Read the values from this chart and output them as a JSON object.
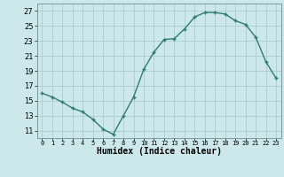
{
  "x": [
    0,
    1,
    2,
    3,
    4,
    5,
    6,
    7,
    8,
    9,
    10,
    11,
    12,
    13,
    14,
    15,
    16,
    17,
    18,
    19,
    20,
    21,
    22,
    23
  ],
  "y": [
    16.0,
    15.5,
    14.8,
    14.0,
    13.5,
    12.5,
    11.2,
    10.5,
    13.0,
    15.5,
    19.2,
    21.5,
    23.2,
    23.3,
    24.6,
    26.2,
    26.8,
    26.8,
    26.6,
    25.7,
    25.2,
    23.5,
    20.2,
    18.0
  ],
  "xlabel": "Humidex (Indice chaleur)",
  "line_color": "#2e7d6e",
  "bg_color": "#cce8ea",
  "grid_color": "#b0d0d4",
  "xlim": [
    -0.5,
    23.5
  ],
  "ylim": [
    10.0,
    28.0
  ],
  "yticks": [
    11,
    13,
    15,
    17,
    19,
    21,
    23,
    25,
    27
  ],
  "xtick_labels": [
    "0",
    "1",
    "2",
    "3",
    "4",
    "5",
    "6",
    "7",
    "8",
    "9",
    "10",
    "11",
    "12",
    "13",
    "14",
    "15",
    "16",
    "17",
    "18",
    "19",
    "20",
    "21",
    "22",
    "23"
  ]
}
